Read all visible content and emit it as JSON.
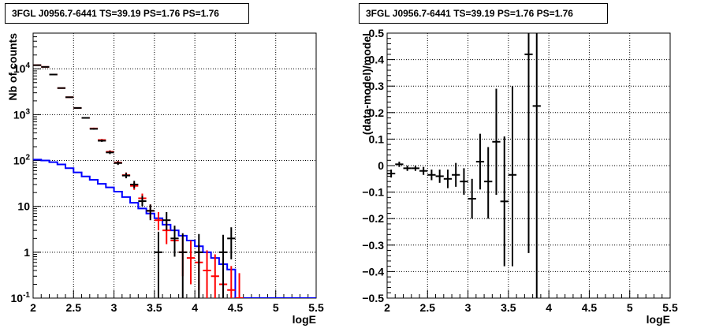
{
  "chart_data": [
    {
      "type": "step",
      "title": "3FGL J0956.7-6441 TS=39.19 PS=1.76 PS=1.76",
      "xlabel": "logE",
      "ylabel": "Nb of counts",
      "xlim": [
        2,
        5.5
      ],
      "ylim": [
        0.1,
        60000
      ],
      "yscale": "log",
      "grid": true,
      "x_ticks": [
        "2",
        "2.5",
        "3",
        "3.5",
        "4",
        "4.5",
        "5",
        "5.5"
      ],
      "y_ticks": [
        {
          "value": 0.1,
          "base": "10",
          "exp": "-1"
        },
        {
          "value": 1,
          "base": "1",
          "exp": ""
        },
        {
          "value": 10,
          "base": "10",
          "exp": ""
        },
        {
          "value": 100,
          "base": "10",
          "exp": "2"
        },
        {
          "value": 1000,
          "base": "10",
          "exp": "3"
        },
        {
          "value": 10000,
          "base": "10",
          "exp": "4"
        }
      ],
      "bin_width": 0.1,
      "series": [
        {
          "color": "#0000ff",
          "style": "step",
          "x": [
            2.0,
            2.1,
            2.2,
            2.3,
            2.4,
            2.5,
            2.6,
            2.7,
            2.8,
            2.9,
            3.0,
            3.1,
            3.2,
            3.3,
            3.4,
            3.5,
            3.6,
            3.7,
            3.8,
            3.9,
            4.0,
            4.1,
            4.2,
            4.3,
            4.4,
            4.5,
            4.6,
            4.7,
            4.8,
            4.9,
            5.0,
            5.1,
            5.2,
            5.3,
            5.4
          ],
          "y": [
            105,
            100,
            92,
            82,
            68,
            55,
            45,
            38,
            31,
            26,
            21,
            16,
            12,
            9,
            7,
            5.5,
            4,
            3,
            2.3,
            1.8,
            1.35,
            1.0,
            0.75,
            0.55,
            0.42,
            0.1,
            0.1,
            0.1,
            0.1,
            0.1,
            0.1,
            0.1,
            0.1,
            0.1,
            0.1
          ]
        },
        {
          "color": "#ff0000",
          "style": "errorbar",
          "points": [
            {
              "x": 2.05,
              "y": 12000,
              "lo": 11800,
              "hi": 12200
            },
            {
              "x": 2.15,
              "y": 11000,
              "lo": 10800,
              "hi": 11200
            },
            {
              "x": 2.25,
              "y": 7500,
              "lo": 7350,
              "hi": 7650
            },
            {
              "x": 2.35,
              "y": 3800,
              "lo": 3700,
              "hi": 3900
            },
            {
              "x": 2.45,
              "y": 2400,
              "lo": 2330,
              "hi": 2470
            },
            {
              "x": 2.55,
              "y": 1400,
              "lo": 1360,
              "hi": 1440
            },
            {
              "x": 2.65,
              "y": 850,
              "lo": 820,
              "hi": 880
            },
            {
              "x": 2.75,
              "y": 500,
              "lo": 480,
              "hi": 520
            },
            {
              "x": 2.85,
              "y": 280,
              "lo": 265,
              "hi": 295
            },
            {
              "x": 2.95,
              "y": 155,
              "lo": 143,
              "hi": 167
            },
            {
              "x": 3.05,
              "y": 90,
              "lo": 82,
              "hi": 98
            },
            {
              "x": 3.15,
              "y": 48,
              "lo": 42,
              "hi": 55
            },
            {
              "x": 3.25,
              "y": 28,
              "lo": 23,
              "hi": 33
            },
            {
              "x": 3.35,
              "y": 15,
              "lo": 11,
              "hi": 19
            },
            {
              "x": 3.45,
              "y": 8,
              "lo": 5.5,
              "hi": 11
            },
            {
              "x": 3.55,
              "y": 5,
              "lo": 3,
              "hi": 7.5
            },
            {
              "x": 3.65,
              "y": 3,
              "lo": 1.5,
              "hi": 4.8
            },
            {
              "x": 3.75,
              "y": 1.8,
              "lo": 0.8,
              "hi": 3.2
            },
            {
              "x": 3.85,
              "y": 1.0,
              "lo": 0.3,
              "hi": 2.2
            },
            {
              "x": 3.95,
              "y": 0.75,
              "lo": 0.2,
              "hi": 1.8
            },
            {
              "x": 4.05,
              "y": 0.6,
              "lo": 0.15,
              "hi": 1.5
            },
            {
              "x": 4.15,
              "y": 0.4,
              "lo": 0.1,
              "hi": 1.1
            },
            {
              "x": 4.25,
              "y": 0.3,
              "lo": 0.1,
              "hi": 0.9
            },
            {
              "x": 4.35,
              "y": 0.2,
              "lo": 0.1,
              "hi": 0.7
            },
            {
              "x": 4.45,
              "y": 0.15,
              "lo": 0.1,
              "hi": 0.5
            },
            {
              "x": 4.55,
              "y": 0.1,
              "lo": 0.1,
              "hi": 0.35
            }
          ]
        },
        {
          "color": "#000000",
          "style": "errorbar",
          "points": [
            {
              "x": 2.05,
              "y": 12000,
              "lo": 11800,
              "hi": 12200
            },
            {
              "x": 2.15,
              "y": 11000,
              "lo": 10800,
              "hi": 11200
            },
            {
              "x": 2.25,
              "y": 7500,
              "lo": 7350,
              "hi": 7650
            },
            {
              "x": 2.35,
              "y": 3800,
              "lo": 3700,
              "hi": 3900
            },
            {
              "x": 2.45,
              "y": 2400,
              "lo": 2330,
              "hi": 2470
            },
            {
              "x": 2.55,
              "y": 1400,
              "lo": 1360,
              "hi": 1440
            },
            {
              "x": 2.65,
              "y": 850,
              "lo": 820,
              "hi": 880
            },
            {
              "x": 2.75,
              "y": 490,
              "lo": 470,
              "hi": 510
            },
            {
              "x": 2.85,
              "y": 270,
              "lo": 255,
              "hi": 285
            },
            {
              "x": 2.95,
              "y": 150,
              "lo": 138,
              "hi": 162
            },
            {
              "x": 3.05,
              "y": 88,
              "lo": 80,
              "hi": 96
            },
            {
              "x": 3.15,
              "y": 47,
              "lo": 41,
              "hi": 54
            },
            {
              "x": 3.25,
              "y": 30,
              "lo": 25,
              "hi": 36
            },
            {
              "x": 3.35,
              "y": 13,
              "lo": 10,
              "hi": 17
            },
            {
              "x": 3.45,
              "y": 8,
              "lo": 5,
              "hi": 11
            },
            {
              "x": 3.55,
              "y": 1,
              "lo": 0.1,
              "hi": 2.8
            },
            {
              "x": 3.65,
              "y": 5,
              "lo": 3,
              "hi": 7.5
            },
            {
              "x": 3.75,
              "y": 2,
              "lo": 0.8,
              "hi": 3.8
            },
            {
              "x": 3.85,
              "y": 1,
              "lo": 0.1,
              "hi": 2.6
            },
            {
              "x": 4.05,
              "y": 1,
              "lo": 0.1,
              "hi": 2.5
            },
            {
              "x": 4.35,
              "y": 1,
              "lo": 0.1,
              "hi": 2.4
            },
            {
              "x": 4.45,
              "y": 2,
              "lo": 0.7,
              "hi": 3.5
            }
          ]
        }
      ]
    },
    {
      "type": "errorbar",
      "title": "3FGL J0956.7-6441 TS=39.19 PS=1.76 PS=1.76",
      "xlabel": "logE",
      "ylabel": "(data-model)/model",
      "xlim": [
        2,
        5.5
      ],
      "ylim": [
        -0.5,
        0.5
      ],
      "grid": true,
      "x_ticks": [
        "2",
        "2.5",
        "3",
        "3.5",
        "4",
        "4.5",
        "5",
        "5.5"
      ],
      "y_ticks": [
        "−0.5",
        "−0.4",
        "−0.3",
        "−0.2",
        "−0.1",
        "0",
        "0.1",
        "0.2",
        "0.3",
        "0.4",
        "0.5"
      ],
      "bin_width": 0.1,
      "series": [
        {
          "color": "#000000",
          "points": [
            {
              "x": 2.05,
              "y": -0.03,
              "lo": -0.045,
              "hi": -0.015
            },
            {
              "x": 2.15,
              "y": 0.005,
              "lo": -0.005,
              "hi": 0.015
            },
            {
              "x": 2.25,
              "y": -0.01,
              "lo": -0.02,
              "hi": 0.0
            },
            {
              "x": 2.35,
              "y": -0.01,
              "lo": -0.02,
              "hi": 0.0
            },
            {
              "x": 2.45,
              "y": -0.02,
              "lo": -0.035,
              "hi": -0.005
            },
            {
              "x": 2.55,
              "y": -0.035,
              "lo": -0.055,
              "hi": -0.015
            },
            {
              "x": 2.65,
              "y": -0.04,
              "lo": -0.065,
              "hi": -0.015
            },
            {
              "x": 2.75,
              "y": -0.05,
              "lo": -0.085,
              "hi": -0.015
            },
            {
              "x": 2.85,
              "y": -0.035,
              "lo": -0.08,
              "hi": 0.01
            },
            {
              "x": 2.95,
              "y": -0.06,
              "lo": -0.11,
              "hi": -0.01
            },
            {
              "x": 3.05,
              "y": -0.125,
              "lo": -0.2,
              "hi": -0.05
            },
            {
              "x": 3.15,
              "y": 0.015,
              "lo": -0.09,
              "hi": 0.12
            },
            {
              "x": 3.25,
              "y": -0.06,
              "lo": -0.2,
              "hi": 0.07
            },
            {
              "x": 3.35,
              "y": 0.09,
              "lo": -0.11,
              "hi": 0.29
            },
            {
              "x": 3.45,
              "y": -0.135,
              "lo": -0.38,
              "hi": 0.11
            },
            {
              "x": 3.55,
              "y": -0.035,
              "lo": -0.38,
              "hi": 0.3
            },
            {
              "x": 3.75,
              "y": 0.42,
              "lo": -0.33,
              "hi": 0.5
            },
            {
              "x": 3.85,
              "y": 0.225,
              "lo": -0.5,
              "hi": 0.5
            }
          ]
        }
      ]
    }
  ]
}
